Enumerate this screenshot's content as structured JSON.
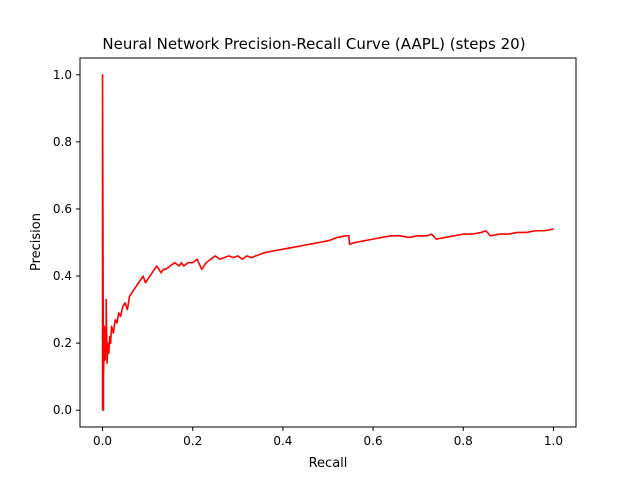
{
  "chart_data": {
    "type": "line",
    "title": "Neural Network Precision-Recall Curve (AAPL) (steps 20)",
    "xlabel": "Recall",
    "ylabel": "Precision",
    "xlim": [
      -0.05,
      1.05
    ],
    "ylim": [
      -0.05,
      1.05
    ],
    "xticks": [
      0.0,
      0.2,
      0.4,
      0.6,
      0.8,
      1.0
    ],
    "xtick_labels": [
      "0.0",
      "0.2",
      "0.4",
      "0.6",
      "0.8",
      "1.0"
    ],
    "yticks": [
      0.0,
      0.2,
      0.4,
      0.6,
      0.8,
      1.0
    ],
    "ytick_labels": [
      "0.0",
      "0.2",
      "0.4",
      "0.6",
      "0.8",
      "1.0"
    ],
    "grid": false,
    "legend": "none",
    "color": "#ff0000",
    "series": [
      {
        "x": [
          0.0,
          0.0,
          0.002,
          0.002,
          0.004,
          0.004,
          0.006,
          0.006,
          0.008,
          0.008,
          0.01,
          0.012,
          0.014,
          0.016,
          0.018,
          0.02,
          0.024,
          0.028,
          0.032,
          0.036,
          0.04,
          0.045,
          0.05,
          0.055,
          0.06,
          0.065,
          0.07,
          0.075,
          0.08,
          0.085,
          0.09,
          0.095,
          0.1,
          0.105,
          0.11,
          0.12,
          0.13,
          0.135,
          0.14,
          0.15,
          0.16,
          0.17,
          0.175,
          0.18,
          0.19,
          0.2,
          0.21,
          0.22,
          0.225,
          0.23,
          0.24,
          0.25,
          0.26,
          0.27,
          0.28,
          0.29,
          0.3,
          0.31,
          0.32,
          0.33,
          0.34,
          0.35,
          0.36,
          0.38,
          0.4,
          0.42,
          0.44,
          0.46,
          0.48,
          0.5,
          0.52,
          0.54,
          0.546,
          0.548,
          0.56,
          0.58,
          0.6,
          0.62,
          0.64,
          0.66,
          0.68,
          0.7,
          0.72,
          0.73,
          0.74,
          0.76,
          0.78,
          0.8,
          0.82,
          0.84,
          0.85,
          0.86,
          0.88,
          0.9,
          0.92,
          0.94,
          0.96,
          0.98,
          1.0
        ],
        "y": [
          0.0,
          1.0,
          0.0,
          0.1,
          0.2,
          0.25,
          0.15,
          0.24,
          0.2,
          0.33,
          0.14,
          0.2,
          0.17,
          0.22,
          0.2,
          0.25,
          0.23,
          0.27,
          0.26,
          0.29,
          0.28,
          0.31,
          0.32,
          0.3,
          0.34,
          0.35,
          0.36,
          0.37,
          0.38,
          0.39,
          0.4,
          0.38,
          0.39,
          0.4,
          0.41,
          0.43,
          0.41,
          0.42,
          0.42,
          0.43,
          0.44,
          0.43,
          0.44,
          0.43,
          0.44,
          0.44,
          0.45,
          0.42,
          0.43,
          0.44,
          0.45,
          0.46,
          0.45,
          0.455,
          0.46,
          0.455,
          0.46,
          0.45,
          0.46,
          0.455,
          0.46,
          0.465,
          0.47,
          0.475,
          0.48,
          0.485,
          0.49,
          0.495,
          0.5,
          0.505,
          0.515,
          0.52,
          0.52,
          0.495,
          0.5,
          0.505,
          0.51,
          0.515,
          0.52,
          0.52,
          0.515,
          0.52,
          0.52,
          0.525,
          0.51,
          0.515,
          0.52,
          0.525,
          0.525,
          0.53,
          0.535,
          0.52,
          0.525,
          0.525,
          0.53,
          0.53,
          0.535,
          0.535,
          0.54
        ]
      }
    ]
  }
}
